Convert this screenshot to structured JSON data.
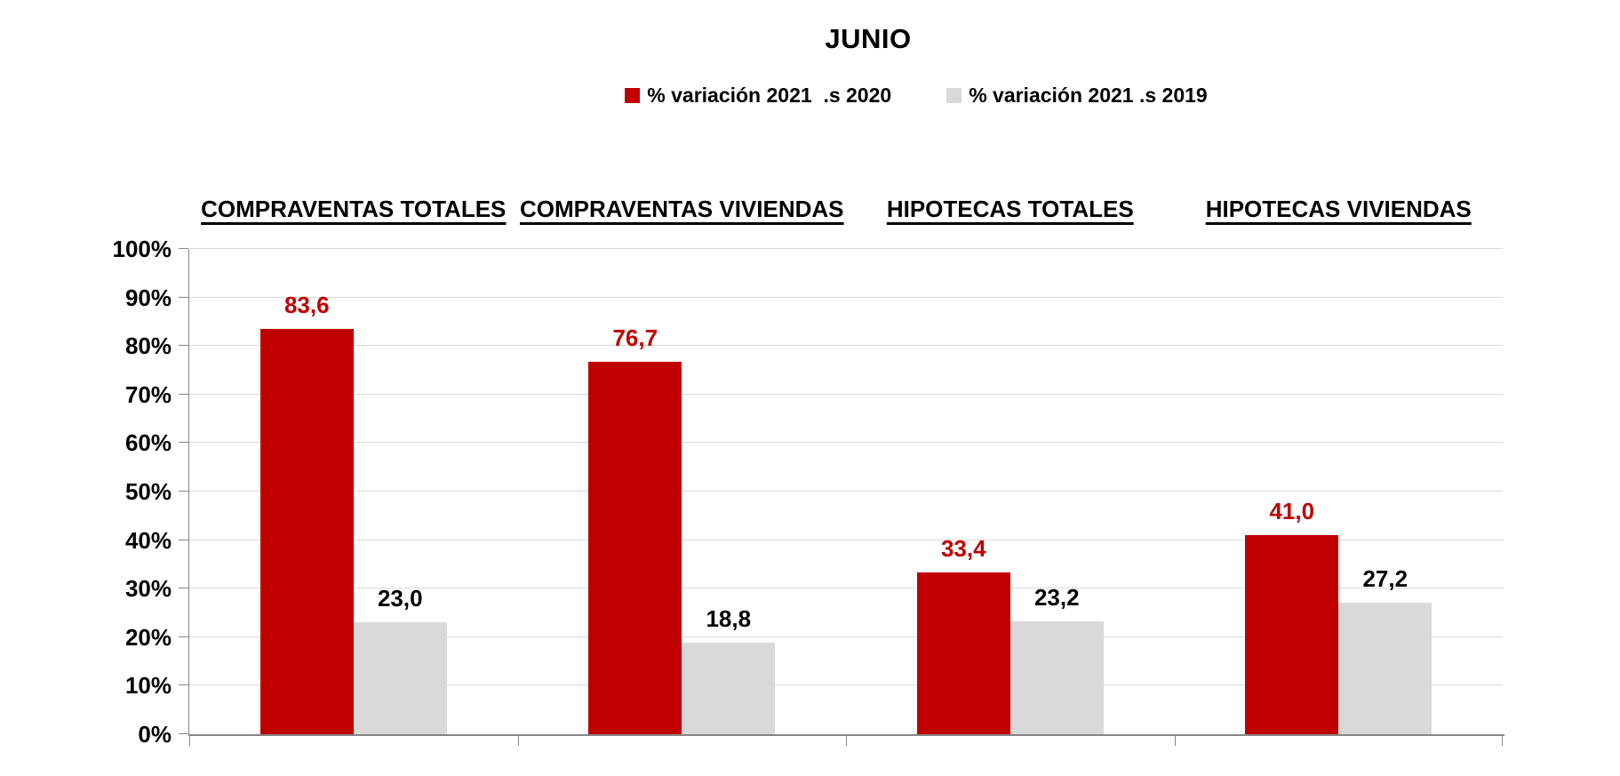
{
  "chart_data": {
    "type": "bar",
    "title": "JUNIO",
    "categories": [
      "COMPRAVENTAS TOTALES",
      "COMPRAVENTAS VIVIENDAS",
      "HIPOTECAS TOTALES",
      "HIPOTECAS VIVIENDAS"
    ],
    "series": [
      {
        "name": "% variación 2021  .s 2020",
        "color": "#C00000",
        "label_color": "#C00000",
        "values": [
          83.6,
          76.7,
          33.4,
          41.0
        ],
        "labels": [
          "83,6",
          "76,7",
          "33,4",
          "41,0"
        ]
      },
      {
        "name": "% variación 2021 .s 2019",
        "color": "#D9D9D9",
        "label_color": "#000000",
        "values": [
          23.0,
          18.8,
          23.2,
          27.2
        ],
        "labels": [
          "23,0",
          "18,8",
          "23,2",
          "27,2"
        ]
      }
    ],
    "xlabel": "",
    "ylabel": "",
    "ylim": [
      0,
      100
    ],
    "ytick_step": 10,
    "yticks": [
      "0%",
      "10%",
      "20%",
      "30%",
      "40%",
      "50%",
      "60%",
      "70%",
      "80%",
      "90%",
      "100%"
    ],
    "grid": "horizontal",
    "legend_position": "top-center",
    "colors": {
      "grid": "#D9D9D9",
      "axis": "#868686",
      "title_text": "#000000",
      "tick_text": "#000000"
    }
  }
}
